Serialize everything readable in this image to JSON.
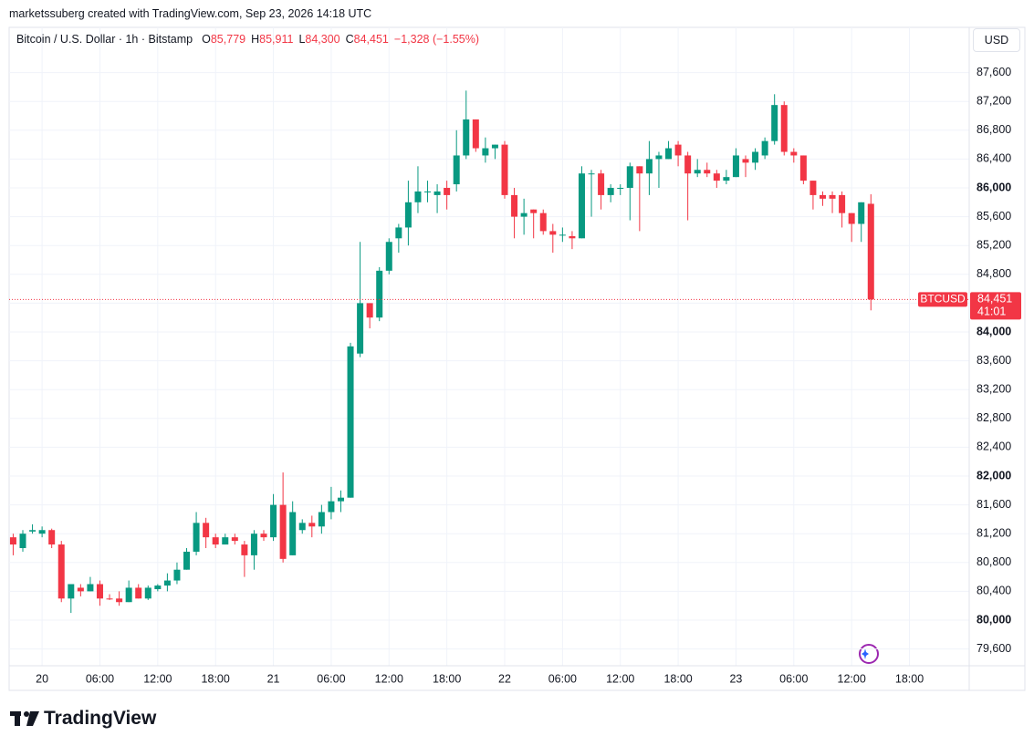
{
  "header": {
    "credit": "marketssuberg created with TradingView.com, Sep 23, 2026 14:18 UTC",
    "brand": "TradingView",
    "currency_button": "USD"
  },
  "chart_data": {
    "type": "candlestick",
    "title": "Bitcoin / U.S. Dollar · 1h · Bitstamp",
    "ohlc": [
      {
        "letter": "O",
        "text": "85,779"
      },
      {
        "letter": "H",
        "text": "85,911"
      },
      {
        "letter": "L",
        "text": "84,300"
      },
      {
        "letter": "C",
        "text": "84,451"
      }
    ],
    "change": "−1,328 (−1.55%)",
    "price_tag": {
      "symbol": "BTCUSD",
      "price": "84,451",
      "countdown": "41:01"
    },
    "up_color": "#089981",
    "down_color": "#f23645",
    "open": [
      81150,
      81000,
      81230,
      81200,
      81250,
      81050,
      80300,
      80450,
      80400,
      80500,
      80300,
      80300,
      80250,
      80450,
      80300,
      80430,
      80480,
      80550,
      80700,
      80950,
      81350,
      81150,
      81050,
      81150,
      81050,
      80900,
      81200,
      81150,
      81600,
      80900,
      81250,
      81350,
      81300,
      81500,
      81650,
      81700,
      83700,
      84400,
      84200,
      84850,
      85300,
      85450,
      85800,
      85950,
      85900,
      86000,
      86050,
      86450,
      86950,
      86450,
      86550,
      86600,
      85900,
      85600,
      85700,
      85650,
      85400,
      85350,
      85330,
      85300,
      86200,
      86200,
      85900,
      86000,
      86000,
      86300,
      86200,
      86400,
      86400,
      86600,
      86450,
      86200,
      86250,
      86200,
      86100,
      86150,
      86400,
      86350,
      86450,
      86650,
      87150,
      86500,
      86450,
      86100,
      85900,
      85900,
      85900,
      85650,
      85500,
      85779
    ],
    "high": [
      81200,
      81250,
      81330,
      81300,
      81270,
      81100,
      80500,
      80500,
      80600,
      80550,
      80360,
      80400,
      80550,
      80500,
      80480,
      80500,
      80650,
      80800,
      81000,
      81500,
      81420,
      81200,
      81200,
      81200,
      81100,
      81250,
      81250,
      81750,
      82050,
      81650,
      81400,
      81450,
      81600,
      81850,
      81800,
      83850,
      85250,
      84400,
      84900,
      85300,
      85500,
      86100,
      86300,
      86100,
      86050,
      86100,
      86800,
      87350,
      86950,
      86700,
      86600,
      86650,
      86000,
      85850,
      85700,
      85700,
      85500,
      85450,
      85400,
      86300,
      86250,
      86250,
      86050,
      86050,
      86350,
      86300,
      86650,
      86500,
      86650,
      86650,
      86500,
      86400,
      86350,
      86250,
      86250,
      86550,
      86450,
      86550,
      86700,
      87300,
      87200,
      86550,
      86450,
      86100,
      85950,
      85950,
      85950,
      85650,
      85800,
      85911
    ],
    "low": [
      80900,
      80950,
      81200,
      81150,
      81000,
      80250,
      80100,
      80330,
      80400,
      80200,
      80280,
      80200,
      80250,
      80300,
      80280,
      80400,
      80400,
      80500,
      80700,
      80900,
      81000,
      81000,
      81050,
      81050,
      80600,
      80700,
      81100,
      81100,
      80800,
      80900,
      81200,
      81150,
      81200,
      81400,
      81500,
      81700,
      83650,
      84050,
      84150,
      84800,
      85100,
      85200,
      85650,
      85800,
      85650,
      85700,
      85950,
      86400,
      86500,
      86350,
      86400,
      85850,
      85300,
      85350,
      85300,
      85350,
      85100,
      85250,
      85150,
      85300,
      85600,
      85700,
      85800,
      85900,
      85550,
      85400,
      85900,
      86000,
      86400,
      86300,
      85550,
      86150,
      86150,
      86000,
      86050,
      86150,
      86150,
      86250,
      86400,
      86600,
      86450,
      86350,
      86050,
      85700,
      85750,
      85650,
      85450,
      85250,
      85250,
      84300
    ],
    "close": [
      81050,
      81200,
      81250,
      81250,
      81050,
      80300,
      80500,
      80400,
      80500,
      80300,
      80290,
      80250,
      80450,
      80300,
      80450,
      80480,
      80550,
      80700,
      80950,
      81350,
      81150,
      81050,
      81150,
      81100,
      80900,
      81200,
      81150,
      81600,
      80850,
      81500,
      81350,
      81300,
      81500,
      81650,
      81700,
      83800,
      84400,
      84200,
      84850,
      85250,
      85450,
      85800,
      85950,
      85950,
      85950,
      85900,
      86450,
      86950,
      86550,
      86550,
      86600,
      85900,
      85600,
      85650,
      85650,
      85400,
      85350,
      85350,
      85300,
      86200,
      86200,
      85900,
      86000,
      86000,
      86300,
      86200,
      86400,
      86450,
      86550,
      86450,
      86200,
      86250,
      86200,
      86100,
      86150,
      86450,
      86350,
      86500,
      86650,
      87150,
      86500,
      86450,
      86100,
      85900,
      85850,
      85850,
      85650,
      85500,
      85800,
      84451
    ],
    "xlim": [
      -0.42,
      99.2
    ],
    "xticks": [
      {
        "value": 3,
        "label": "20"
      },
      {
        "value": 9,
        "label": "06:00"
      },
      {
        "value": 15,
        "label": "12:00"
      },
      {
        "value": 21,
        "label": "18:00"
      },
      {
        "value": 27,
        "label": "21"
      },
      {
        "value": 33,
        "label": "06:00"
      },
      {
        "value": 39,
        "label": "12:00"
      },
      {
        "value": 45,
        "label": "18:00"
      },
      {
        "value": 51,
        "label": "22"
      },
      {
        "value": 57,
        "label": "06:00"
      },
      {
        "value": 63,
        "label": "12:00"
      },
      {
        "value": 69,
        "label": "18:00"
      },
      {
        "value": 75,
        "label": "23"
      },
      {
        "value": 81,
        "label": "06:00"
      },
      {
        "value": 87,
        "label": "12:00"
      },
      {
        "value": 93,
        "label": "18:00"
      }
    ],
    "ylim": [
      79367,
      88228
    ],
    "yticks": [
      {
        "value": 79600,
        "label": "79,600"
      },
      {
        "value": 80000,
        "label": "80,000"
      },
      {
        "value": 80400,
        "label": "80,400"
      },
      {
        "value": 80800,
        "label": "80,800"
      },
      {
        "value": 81200,
        "label": "81,200"
      },
      {
        "value": 81600,
        "label": "81,600"
      },
      {
        "value": 82000,
        "label": "82,000"
      },
      {
        "value": 82400,
        "label": "82,400"
      },
      {
        "value": 82800,
        "label": "82,800"
      },
      {
        "value": 83200,
        "label": "83,200"
      },
      {
        "value": 83600,
        "label": "83,600"
      },
      {
        "value": 84000,
        "label": "84,000"
      },
      {
        "value": 84400,
        "label": "84,400"
      },
      {
        "value": 84800,
        "label": "84,800"
      },
      {
        "value": 85200,
        "label": "85,200"
      },
      {
        "value": 85600,
        "label": "85,600"
      },
      {
        "value": 86000,
        "label": "86,000"
      },
      {
        "value": 86400,
        "label": "86,400"
      },
      {
        "value": 86800,
        "label": "86,800"
      },
      {
        "value": 87200,
        "label": "87,200"
      },
      {
        "value": 87600,
        "label": "87,600"
      }
    ],
    "grid": true
  }
}
